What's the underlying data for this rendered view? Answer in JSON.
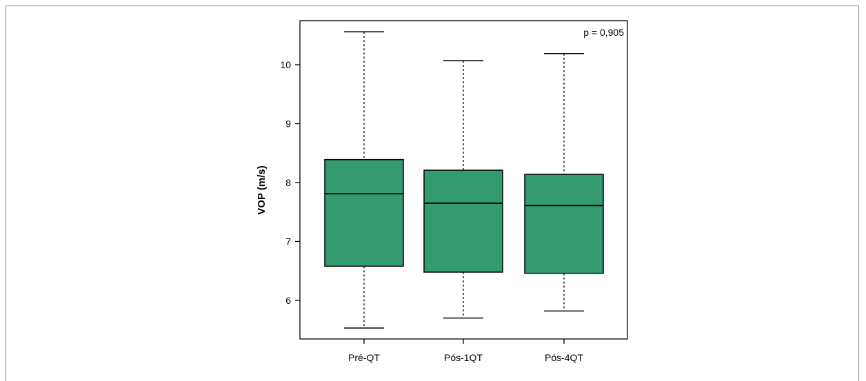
{
  "chart_data": {
    "type": "box",
    "categories": [
      "Pré-QT",
      "Pós-1QT",
      "Pós-4QT"
    ],
    "boxes": [
      {
        "min": 5.53,
        "q1": 6.58,
        "median": 7.81,
        "q3": 8.39,
        "max": 10.56
      },
      {
        "min": 5.7,
        "q1": 6.48,
        "median": 7.65,
        "q3": 8.21,
        "max": 10.07
      },
      {
        "min": 5.82,
        "q1": 6.46,
        "median": 7.61,
        "q3": 8.14,
        "max": 10.19
      }
    ],
    "ylabel": "VOP (m/s)",
    "xlabel": "",
    "yticks": [
      6,
      7,
      8,
      9,
      10
    ],
    "ylim": [
      5.35,
      10.75
    ],
    "annotation": "p = 0,905",
    "box_color": "#339b6f"
  }
}
